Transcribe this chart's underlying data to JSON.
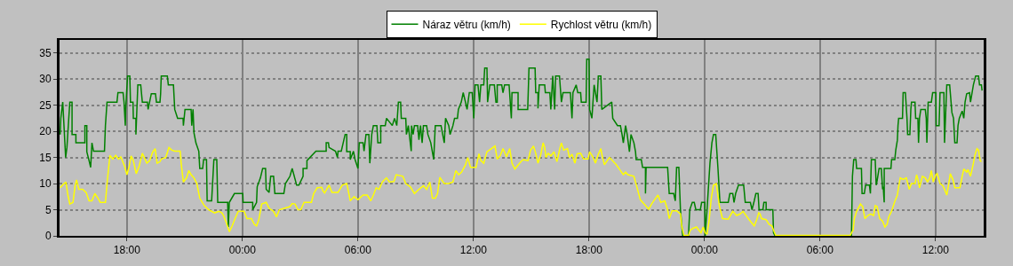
{
  "chart_data": {
    "type": "line",
    "xlim": [
      "--01-01T14:30",
      "--01-03T14:30"
    ],
    "xticks": [
      {
        "value": "--01-01T18:00",
        "label": "18:00"
      },
      {
        "value": "--01-02T00:00",
        "label": "00:00"
      },
      {
        "value": "--01-02T06:00",
        "label": "06:00"
      },
      {
        "value": "--01-02T12:00",
        "label": "12:00"
      },
      {
        "value": "--01-02T18:00",
        "label": "18:00"
      },
      {
        "value": "--01-03T00:00",
        "label": "00:00"
      },
      {
        "value": "--01-03T06:00",
        "label": "06:00"
      },
      {
        "value": "--01-03T12:00",
        "label": "12:00"
      }
    ],
    "ylim": [
      0,
      37.5
    ],
    "yticks": [
      0,
      5,
      10,
      15,
      20,
      25,
      30,
      35
    ],
    "grid": true,
    "legend": "top",
    "line_style": "solid",
    "marker": "none",
    "series": [
      {
        "name": "Náraz větru (km/h)",
        "color": "#008000",
        "x": [
          "--01-01T14:32",
          "--01-01T14:34",
          "--01-01T14:40",
          "--01-01T14:49",
          "--01-01T14:53",
          "--01-01T15:02",
          "--01-01T15:09",
          "--01-01T15:09",
          "--01-01T15:21",
          "--01-01T15:21",
          "--01-01T15:49",
          "--01-01T15:49",
          "--01-01T15:55",
          "--01-01T15:55",
          "--01-01T16:02",
          "--01-01T16:07",
          "--01-01T16:11",
          "--01-01T16:16",
          "--01-01T16:50",
          "--01-01T16:53",
          "--01-01T16:58",
          "--01-01T17:29",
          "--01-01T17:32",
          "--01-01T17:48",
          "--01-01T17:51",
          "--01-01T17:55",
          "--01-01T17:56",
          "--01-01T18:02",
          "--01-01T18:09",
          "--01-01T18:11",
          "--01-01T18:19",
          "--01-01T18:20",
          "--01-01T18:28",
          "--01-01T18:28",
          "--01-01T18:34",
          "--01-01T18:43",
          "--01-01T18:48",
          "--01-01T19:04",
          "--01-01T19:06",
          "--01-01T19:16",
          "--01-01T19:29",
          "--01-01T19:32",
          "--01-01T19:43",
          "--01-01T19:45",
          "--01-01T19:47",
          "--01-01T20:06",
          "--01-01T20:09",
          "--01-01T20:25",
          "--01-01T20:29",
          "--01-01T20:38",
          "--01-01T20:55",
          "--01-01T20:56",
          "--01-01T21:01",
          "--01-01T21:20",
          "--01-01T21:22",
          "--01-01T21:26",
          "--01-01T21:29",
          "--01-01T21:35",
          "--01-01T21:44",
          "--01-01T21:47",
          "--01-01T21:56",
          "--01-01T21:59",
          "--01-01T22:08",
          "--01-01T22:10",
          "--01-01T22:24",
          "--01-01T22:31",
          "--01-01T22:40",
          "--01-01T22:43",
          "--01-01T23:14",
          "--01-01T23:16",
          "--01-01T23:19",
          "--01-01T23:35",
          "--01-02T00:01",
          "--01-02T00:02",
          "--01-02T00:32",
          "--01-02T00:32",
          "--01-02T00:44",
          "--01-02T00:46",
          "--01-02T00:56",
          "--01-02T01:03",
          "--01-02T01:12",
          "--01-02T01:14",
          "--01-02T01:23",
          "--01-02T01:28",
          "--01-02T01:37",
          "--01-02T01:41",
          "--01-02T02:09",
          "--01-02T02:14",
          "--01-02T02:28",
          "--01-02T02:35",
          "--01-02T02:49",
          "--01-02T02:56",
          "--01-02T03:09",
          "--01-02T03:09",
          "--01-02T03:21",
          "--01-02T03:21",
          "--01-02T03:49",
          "--01-02T04:21",
          "--01-02T04:21",
          "--01-02T04:28",
          "--01-02T04:30",
          "--01-02T04:50",
          "--01-02T04:56",
          "--01-02T04:58",
          "--01-02T05:08",
          "--01-02T05:14",
          "--01-02T05:20",
          "--01-02T05:25",
          "--01-02T05:25",
          "--01-02T05:36",
          "--01-02T05:36",
          "--01-02T05:46",
          "--01-02T05:51",
          "--01-02T06:00",
          "--01-02T06:04",
          "--01-02T06:16",
          "--01-02T06:19",
          "--01-02T06:25",
          "--01-02T06:34",
          "--01-02T06:37",
          "--01-02T06:43",
          "--01-02T06:48",
          "--01-02T06:59",
          "--01-02T07:02",
          "--01-02T07:11",
          "--01-02T07:11",
          "--01-02T07:25",
          "--01-02T07:29",
          "--01-02T07:47",
          "--01-02T07:54",
          "--01-02T08:01",
          "--01-02T08:06",
          "--01-02T08:13",
          "--01-02T08:15",
          "--01-02T08:29",
          "--01-02T08:31",
          "--01-02T08:37",
          "--01-02T08:46",
          "--01-02T08:47",
          "--01-02T08:52",
          "--01-02T08:56",
          "--01-02T09:06",
          "--01-02T09:10",
          "--01-02T09:15",
          "--01-02T09:20",
          "--01-02T09:24",
          "--01-02T09:34",
          "--01-02T09:38",
          "--01-02T09:47",
          "--01-02T09:56",
          "--01-02T10:01",
          "--01-02T10:19",
          "--01-02T10:24",
          "--01-02T10:29",
          "--01-02T10:33",
          "--01-02T10:43",
          "--01-02T10:47",
          "--01-02T10:56",
          "--01-02T11:01",
          "--01-02T11:10",
          "--01-02T11:13",
          "--01-02T11:22",
          "--01-02T11:28",
          "--01-02T11:35",
          "--01-02T11:40",
          "--01-02T11:47",
          "--01-02T11:56",
          "--01-02T12:01",
          "--01-02T12:05",
          "--01-02T12:14",
          "--01-02T12:19",
          "--01-02T12:23",
          "--01-02T12:32",
          "--01-02T12:35",
          "--01-02T12:42",
          "--01-02T12:44",
          "--01-02T12:51",
          "--01-02T13:05",
          "--01-02T13:10",
          "--01-02T13:14",
          "--01-02T13:14",
          "--01-02T13:28",
          "--01-02T13:32",
          "--01-02T13:37",
          "--01-02T13:51",
          "--01-02T13:58",
          "--01-02T14:00",
          "--01-02T14:19",
          "--01-02T14:19",
          "--01-02T14:35",
          "--01-02T14:49",
          "--01-02T14:53",
          "--01-02T15:12",
          "--01-02T15:14",
          "--01-02T15:21",
          "--01-02T15:21",
          "--01-02T15:25",
          "--01-02T15:42",
          "--01-02T15:44",
          "--01-02T15:58",
          "--01-02T16:01",
          "--01-02T16:07",
          "--01-02T16:13",
          "--01-02T16:16",
          "--01-02T16:28",
          "--01-02T16:34",
          "--01-02T16:39",
          "--01-02T17:02",
          "--01-02T17:07",
          "--01-02T17:10",
          "--01-02T17:20",
          "--01-02T17:25",
          "--01-02T17:34",
          "--01-02T17:36",
          "--01-02T17:51",
          "--01-02T17:53",
          "--01-02T18:00",
          "--01-02T18:02",
          "--01-02T18:09",
          "--01-02T18:16",
          "--01-02T18:25",
          "--01-02T18:29",
          "--01-02T18:37",
          "--01-02T18:40",
          "--01-02T19:11",
          "--01-02T19:14",
          "--01-02T19:29",
          "--01-02T19:38",
          "--01-02T19:43",
          "--01-02T19:47",
          "--01-02T19:54",
          "--01-02T19:59",
          "--01-02T20:06",
          "--01-02T20:11",
          "--01-02T20:20",
          "--01-02T20:25",
          "--01-02T20:27",
          "--01-02T20:43",
          "--01-02T20:47",
          "--01-02T20:56",
          "--01-02T20:56",
          "--01-02T20:58",
          "--01-02T22:05",
          "--01-02T22:10",
          "--01-02T22:24",
          "--01-02T22:29",
          "--01-02T22:33",
          "--01-02T22:40",
          "--01-02T22:45",
          "--01-02T22:52",
          "--01-02T23:10",
          "--01-02T23:14",
          "--01-02T23:22",
          "--01-02T23:28",
          "--01-02T23:33",
          "--01-02T23:47",
          "--01-02T23:51",
          "--01-03T00:01",
          "--01-03T00:02",
          "--01-03T00:08",
          "--01-03T00:11",
          "--01-03T00:17",
          "--01-03T00:23",
          "--01-03T00:28",
          "--01-03T00:35",
          "--01-03T00:42",
          "--01-03T00:48",
          "--01-03T01:14",
          "--01-03T01:19",
          "--01-03T01:28",
          "--01-03T01:32",
          "--01-03T01:37",
          "--01-03T01:46",
          "--01-03T02:02",
          "--01-03T02:07",
          "--01-03T02:23",
          "--01-03T02:28",
          "--01-03T02:35",
          "--01-03T02:40",
          "--01-03T02:47",
          "--01-03T02:50",
          "--01-03T03:02",
          "--01-03T03:05",
          "--01-03T03:12",
          "--01-03T03:12",
          "--01-03T03:33",
          "--01-03T03:35",
          "--01-03T03:40",
          "--01-03T07:38",
          "--01-03T07:41",
          "--01-03T07:45",
          "--01-03T07:52",
          "--01-03T07:54",
          "--01-03T08:09",
          "--01-03T08:11",
          "--01-03T08:18",
          "--01-03T08:22",
          "--01-03T08:34",
          "--01-03T08:37",
          "--01-03T08:40",
          "--01-03T08:52",
          "--01-03T08:55",
          "--01-03T08:58",
          "--01-03T09:04",
          "--01-03T09:11",
          "--01-03T09:15",
          "--01-03T09:17",
          "--01-03T09:20",
          "--01-03T09:20",
          "--01-03T09:41",
          "--01-03T09:43",
          "--01-03T09:53",
          "--01-03T09:56",
          "--01-03T10:01",
          "--01-03T10:03",
          "--01-03T10:05",
          "--01-03T10:17",
          "--01-03T10:19",
          "--01-03T10:26",
          "--01-03T10:31",
          "--01-03T10:33",
          "--01-03T10:40",
          "--01-03T10:43",
          "--01-03T10:45",
          "--01-03T10:56",
          "--01-03T10:58",
          "--01-03T11:05",
          "--01-03T11:07",
          "--01-03T11:10",
          "--01-03T11:14",
          "--01-03T11:28",
          "--01-03T11:31",
          "--01-03T11:33",
          "--01-03T11:37",
          "--01-03T11:47",
          "--01-03T11:51",
          "--01-03T12:01",
          "--01-03T12:02",
          "--01-03T12:11",
          "--01-03T12:14",
          "--01-03T12:26",
          "--01-03T12:28",
          "--01-03T12:35",
          "--01-03T12:44",
          "--01-03T12:51",
          "--01-03T12:56",
          "--01-03T13:00",
          "--01-03T13:07",
          "--01-03T13:10",
          "--01-03T13:14",
          "--01-03T13:23",
          "--01-03T13:28",
          "--01-03T13:32",
          "--01-03T13:37",
          "--01-03T13:46",
          "--01-03T13:49",
          "--01-03T13:58",
          "--01-03T14:05",
          "--01-03T14:14",
          "--01-03T14:17",
          "--01-03T14:23",
          "--01-03T14:25"
        ],
        "values": [
          19.4,
          22.5,
          25.6,
          15.0,
          16.9,
          25.6,
          25.6,
          19.4,
          19.4,
          17.8,
          17.8,
          21.1,
          21.1,
          16.1,
          14.4,
          13.1,
          17.8,
          16.2,
          16.2,
          21.1,
          25.6,
          25.6,
          27.4,
          27.4,
          25.6,
          21.1,
          24.2,
          30.6,
          30.6,
          25.6,
          25.6,
          22.5,
          22.5,
          19.4,
          28.9,
          28.9,
          25.6,
          25.6,
          24.2,
          27.2,
          27.2,
          25.6,
          25.6,
          27.2,
          30.6,
          30.6,
          28.9,
          28.9,
          24.2,
          22.5,
          22.5,
          21.1,
          24.2,
          24.2,
          21.1,
          24.2,
          19.7,
          17.8,
          16.2,
          12.9,
          12.9,
          14.6,
          14.6,
          6.7,
          6.7,
          14.6,
          14.6,
          6.4,
          6.4,
          1.7,
          6.4,
          8.1,
          8.1,
          6.4,
          6.4,
          5.0,
          6.4,
          9.4,
          11.1,
          12.9,
          12.9,
          8.9,
          8.3,
          11.4,
          11.4,
          8.1,
          8.1,
          10.0,
          11.4,
          12.9,
          9.7,
          9.7,
          11.4,
          12.9,
          12.9,
          14.4,
          16.2,
          16.2,
          17.8,
          17.8,
          16.9,
          16.2,
          15.0,
          16.2,
          16.2,
          17.8,
          19.4,
          19.4,
          16.1,
          16.1,
          14.6,
          16.2,
          14.6,
          12.9,
          17.8,
          17.8,
          16.2,
          19.4,
          19.4,
          13.9,
          19.4,
          21.1,
          21.1,
          17.8,
          17.8,
          21.1,
          21.1,
          22.5,
          21.1,
          22.5,
          21.1,
          25.6,
          25.6,
          22.5,
          22.5,
          19.4,
          21.1,
          16.2,
          21.1,
          19.4,
          21.1,
          21.1,
          18.4,
          21.1,
          17.8,
          21.1,
          21.1,
          19.4,
          17.8,
          14.6,
          21.1,
          21.1,
          19.4,
          17.8,
          22.5,
          21.1,
          19.4,
          21.1,
          22.5,
          22.5,
          24.2,
          25.6,
          27.4,
          25.6,
          24.2,
          27.4,
          27.4,
          22.5,
          28.9,
          28.9,
          25.6,
          28.9,
          28.9,
          32.1,
          32.1,
          25.6,
          28.9,
          28.9,
          25.6,
          25.6,
          28.9,
          28.9,
          27.4,
          28.9,
          28.9,
          22.5,
          27.4,
          27.4,
          24.2,
          24.2,
          24.2,
          32.1,
          32.1,
          27.4,
          27.4,
          24.4,
          28.9,
          28.9,
          27.4,
          27.4,
          24.2,
          30.6,
          24.2,
          30.6,
          30.6,
          25.6,
          27.4,
          27.4,
          22.5,
          27.4,
          28.9,
          27.4,
          27.4,
          25.6,
          25.6,
          33.8,
          33.8,
          24.2,
          22.5,
          28.9,
          25.6,
          30.6,
          30.6,
          24.2,
          25.6,
          22.5,
          21.1,
          21.1,
          19.4,
          17.8,
          21.1,
          19.4,
          16.1,
          19.4,
          17.8,
          16.1,
          14.6,
          14.6,
          13.1,
          13.1,
          8.1,
          13.1,
          13.1,
          8.1,
          8.1,
          6.7,
          13.1,
          13.1,
          5.0,
          0,
          0,
          5.0,
          6.4,
          6.4,
          5.0,
          5.0,
          6.4,
          6.4,
          0,
          5.0,
          8.1,
          13.9,
          17.8,
          19.4,
          19.4,
          12.8,
          6.4,
          6.4,
          8.1,
          8.1,
          6.4,
          8.1,
          9.7,
          9.7,
          6.4,
          6.4,
          5.0,
          6.7,
          8.1,
          8.1,
          5.0,
          5.0,
          6.4,
          6.4,
          5.0,
          5.0,
          0.6,
          0,
          0,
          11.4,
          14.6,
          14.6,
          12.9,
          12.9,
          8.1,
          8.1,
          9.7,
          9.7,
          8.1,
          14.6,
          14.6,
          9.7,
          10.6,
          12.9,
          12.9,
          8.9,
          9.4,
          6.4,
          12.9,
          12.9,
          14.6,
          14.6,
          16.4,
          18.3,
          21.1,
          22.5,
          22.5,
          27.4,
          27.4,
          22.5,
          19.4,
          19.4,
          24.2,
          25.6,
          25.6,
          22.5,
          22.5,
          17.8,
          22.5,
          24.2,
          24.2,
          22.5,
          17.8,
          25.6,
          25.6,
          27.4,
          27.4,
          21.1,
          21.1,
          27.4,
          27.4,
          17.8,
          28.9,
          28.9,
          23.6,
          22.5,
          17.8,
          17.8,
          21.1,
          22.5,
          23.9,
          22.5,
          25.6,
          27.2,
          27.4,
          25.6,
          28.9,
          30.6,
          30.6,
          28.9,
          28.9,
          27.8
        ]
      },
      {
        "name": "Rychlost větru (km/h)",
        "color": "#ffff00",
        "x": [
          "--01-01T14:32",
          "--01-01T14:44",
          "--01-01T14:50",
          "--01-01T14:56",
          "--01-01T15:02",
          "--01-01T15:12",
          "--01-01T15:18",
          "--01-01T15:23",
          "--01-01T15:30",
          "--01-01T15:42",
          "--01-01T15:53",
          "--01-01T16:02",
          "--01-01T16:11",
          "--01-01T16:20",
          "--01-01T16:30",
          "--01-01T16:37",
          "--01-01T16:53",
          "--01-01T16:59",
          "--01-01T17:07",
          "--01-01T17:16",
          "--01-01T17:25",
          "--01-01T17:34",
          "--01-01T17:41",
          "--01-01T17:53",
          "--01-01T18:00",
          "--01-01T18:07",
          "--01-01T18:13",
          "--01-01T18:20",
          "--01-01T18:29",
          "--01-01T18:38",
          "--01-01T18:48",
          "--01-01T19:02",
          "--01-01T19:11",
          "--01-01T19:20",
          "--01-01T19:28",
          "--01-01T19:34",
          "--01-01T19:43",
          "--01-01T19:47",
          "--01-01T20:01",
          "--01-01T20:11",
          "--01-01T20:20",
          "--01-01T20:29",
          "--01-01T20:46",
          "--01-01T20:49",
          "--01-01T20:56",
          "--01-01T21:06",
          "--01-01T21:13",
          "--01-01T21:20",
          "--01-01T21:29",
          "--01-01T21:38",
          "--01-01T21:47",
          "--01-01T22:01",
          "--01-01T22:15",
          "--01-01T22:33",
          "--01-01T22:47",
          "--01-01T22:56",
          "--01-01T23:01",
          "--01-01T23:10",
          "--01-01T23:19",
          "--01-01T23:28",
          "--01-01T23:37",
          "--01-01T23:47",
          "--01-02T00:05",
          "--01-02T00:14",
          "--01-02T00:28",
          "--01-02T00:37",
          "--01-02T00:44",
          "--01-02T00:51",
          "--01-02T01:00",
          "--01-02T01:14",
          "--01-02T01:23",
          "--01-02T01:37",
          "--01-02T01:46",
          "--01-02T01:55",
          "--01-02T02:28",
          "--01-02T02:35",
          "--01-02T02:44",
          "--01-02T02:53",
          "--01-02T03:02",
          "--01-02T03:12",
          "--01-02T03:35",
          "--01-02T03:42",
          "--01-02T03:53",
          "--01-02T04:07",
          "--01-02T04:11",
          "--01-02T04:16",
          "--01-02T04:30",
          "--01-02T04:39",
          "--01-02T04:58",
          "--01-02T05:11",
          "--01-02T05:25",
          "--01-02T05:29",
          "--01-02T05:36",
          "--01-02T05:48",
          "--01-02T06:00",
          "--01-02T06:16",
          "--01-02T06:29",
          "--01-02T06:40",
          "--01-02T06:48",
          "--01-02T06:57",
          "--01-02T07:06",
          "--01-02T07:16",
          "--01-02T07:29",
          "--01-02T07:38",
          "--01-02T07:52",
          "--01-02T07:59",
          "--01-02T08:20",
          "--01-02T08:29",
          "--01-02T08:43",
          "--01-02T08:56",
          "--01-02T09:10",
          "--01-02T09:24",
          "--01-02T09:34",
          "--01-02T09:44",
          "--01-02T09:52",
          "--01-02T10:01",
          "--01-02T10:08",
          "--01-02T10:15",
          "--01-02T10:29",
          "--01-02T10:43",
          "--01-02T10:56",
          "--01-02T11:05",
          "--01-02T11:14",
          "--01-02T11:23",
          "--01-02T11:35",
          "--01-02T11:42",
          "--01-02T11:51",
          "--01-02T12:08",
          "--01-02T12:17",
          "--01-02T12:23",
          "--01-02T12:32",
          "--01-02T12:42",
          "--01-02T12:56",
          "--01-02T13:07",
          "--01-02T13:14",
          "--01-02T13:23",
          "--01-02T13:32",
          "--01-02T13:43",
          "--01-02T13:53",
          "--01-02T14:00",
          "--01-02T14:09",
          "--01-02T14:28",
          "--01-02T14:35",
          "--01-02T14:50",
          "--01-02T14:58",
          "--01-02T15:07",
          "--01-02T15:14",
          "--01-02T15:21",
          "--01-02T15:30",
          "--01-02T15:37",
          "--01-02T15:42",
          "--01-02T15:46",
          "--01-02T15:53",
          "--01-02T16:01",
          "--01-02T16:11",
          "--01-02T16:20",
          "--01-02T16:30",
          "--01-02T16:34",
          "--01-02T16:41",
          "--01-02T16:53",
          "--01-02T16:59",
          "--01-02T17:07",
          "--01-02T17:16",
          "--01-02T17:23",
          "--01-02T17:34",
          "--01-02T17:43",
          "--01-02T17:57",
          "--01-02T18:02",
          "--01-02T18:13",
          "--01-02T18:20",
          "--01-02T18:29",
          "--01-02T18:37",
          "--01-02T18:40",
          "--01-02T18:48",
          "--01-02T18:57",
          "--01-02T19:04",
          "--01-02T19:16",
          "--01-02T19:25",
          "--01-02T19:38",
          "--01-02T19:47",
          "--01-02T19:54",
          "--01-02T20:01",
          "--01-02T20:20",
          "--01-02T20:29",
          "--01-02T20:40",
          "--01-02T20:56",
          "--01-02T21:06",
          "--01-02T21:15",
          "--01-02T21:24",
          "--01-02T21:35",
          "--01-02T21:44",
          "--01-02T21:56",
          "--01-02T22:05",
          "--01-02T22:10",
          "--01-02T22:19",
          "--01-02T22:33",
          "--01-02T22:45",
          "--01-02T22:49",
          "--01-02T22:56",
          "--01-02T23:10",
          "--01-02T23:16",
          "--01-02T23:23",
          "--01-02T23:35",
          "--01-02T23:42",
          "--01-02T23:49",
          "--01-02T23:56",
          "--01-03T00:02",
          "--01-03T00:08",
          "--01-03T00:14",
          "--01-03T00:21",
          "--01-03T00:28",
          "--01-03T00:37",
          "--01-03T00:46",
          "--01-03T00:56",
          "--01-03T01:14",
          "--01-03T01:28",
          "--01-03T01:40",
          "--01-03T01:51",
          "--01-03T02:00",
          "--01-03T02:19",
          "--01-03T02:35",
          "--01-03T02:44",
          "--01-03T02:49",
          "--01-03T02:53",
          "--01-03T02:58",
          "--01-03T03:12",
          "--01-03T03:21",
          "--01-03T03:30",
          "--01-03T03:37",
          "--01-03T03:42",
          "--01-03T07:34",
          "--01-03T07:43",
          "--01-03T07:47",
          "--01-03T07:54",
          "--01-03T08:06",
          "--01-03T08:13",
          "--01-03T08:20",
          "--01-03T08:29",
          "--01-03T08:38",
          "--01-03T08:47",
          "--01-03T08:52",
          "--01-03T08:58",
          "--01-03T09:06",
          "--01-03T09:15",
          "--01-03T09:22",
          "--01-03T09:29",
          "--01-03T09:34",
          "--01-03T09:43",
          "--01-03T09:52",
          "--01-03T10:01",
          "--01-03T10:05",
          "--01-03T10:10",
          "--01-03T10:19",
          "--01-03T10:29",
          "--01-03T10:38",
          "--01-03T10:45",
          "--01-03T10:56",
          "--01-03T11:01",
          "--01-03T11:05",
          "--01-03T11:10",
          "--01-03T11:19",
          "--01-03T11:28",
          "--01-03T11:35",
          "--01-03T11:42",
          "--01-03T11:47",
          "--01-03T11:53",
          "--01-03T12:01",
          "--01-03T12:05",
          "--01-03T12:14",
          "--01-03T12:23",
          "--01-03T12:28",
          "--01-03T12:35",
          "--01-03T12:42",
          "--01-03T12:46",
          "--01-03T12:54",
          "--01-03T13:00",
          "--01-03T13:16",
          "--01-03T13:23",
          "--01-03T13:28",
          "--01-03T13:37",
          "--01-03T13:41",
          "--01-03T13:49",
          "--01-03T13:58",
          "--01-03T14:02",
          "--01-03T14:09",
          "--01-03T14:14",
          "--01-03T14:19",
          "--01-03T14:23"
        ],
        "values": [
          9.2,
          10.0,
          10.3,
          7.8,
          6.1,
          6.4,
          9.4,
          10.7,
          8.9,
          8.9,
          8.3,
          6.7,
          6.7,
          8.1,
          7.2,
          6.4,
          6.4,
          10.6,
          15.4,
          14.7,
          15.4,
          14.7,
          15.1,
          13.3,
          11.7,
          13.3,
          15.3,
          14.4,
          11.9,
          13.3,
          15.8,
          13.9,
          14.4,
          16.0,
          16.7,
          13.9,
          14.2,
          14.7,
          15.0,
          16.9,
          16.4,
          16.2,
          16.2,
          13.9,
          10.3,
          11.1,
          12.5,
          11.7,
          11.1,
          10.0,
          7.2,
          5.8,
          5.0,
          4.4,
          4.7,
          4.4,
          3.9,
          2.5,
          0.8,
          1.9,
          3.3,
          4.7,
          4.7,
          3.3,
          3.3,
          2.2,
          1.9,
          3.1,
          6.1,
          6.4,
          5.3,
          4.7,
          3.6,
          5.0,
          5.6,
          6.2,
          6.1,
          5.0,
          5.0,
          6.4,
          6.4,
          8.1,
          9.2,
          9.3,
          8.6,
          8.2,
          9.7,
          8.3,
          8.3,
          9.7,
          10.0,
          8.9,
          6.7,
          7.5,
          6.9,
          7.8,
          7.8,
          6.7,
          7.8,
          9.2,
          8.9,
          10.3,
          11.1,
          10.3,
          10.4,
          11.7,
          11.4,
          10.0,
          9.4,
          8.1,
          8.9,
          9.6,
          8.9,
          10.3,
          7.2,
          7.2,
          8.1,
          11.2,
          10.0,
          10.0,
          10.3,
          12.5,
          11.7,
          12.2,
          13.6,
          15.0,
          13.1,
          13.1,
          15.7,
          14.4,
          13.9,
          16.1,
          16.7,
          17.2,
          14.7,
          15.3,
          16.7,
          15.1,
          16.7,
          13.9,
          12.8,
          14.2,
          14.6,
          14.4,
          16.4,
          17.2,
          15.8,
          13.9,
          15.6,
          17.8,
          16.9,
          15.0,
          15.8,
          15.3,
          16.1,
          14.2,
          16.9,
          17.8,
          16.4,
          16.7,
          15.0,
          15.6,
          13.9,
          15.7,
          15.8,
          14.7,
          14.7,
          16.1,
          15.0,
          13.9,
          15.6,
          16.7,
          15.6,
          13.6,
          14.4,
          15.0,
          14.2,
          13.6,
          12.5,
          11.7,
          12.2,
          11.7,
          11.4,
          9.4,
          6.9,
          5.8,
          5.1,
          6.1,
          6.9,
          7.8,
          6.4,
          6.7,
          5.0,
          3.3,
          4.8,
          4.8,
          4.2,
          1.9,
          0.1,
          0.1,
          1.1,
          1.4,
          1.7,
          1.1,
          0.6,
          1.7,
          0.6,
          0.3,
          2.8,
          7.2,
          9.7,
          10.0,
          5.8,
          3.3,
          3.2,
          4.7,
          3.9,
          4.2,
          4.7,
          3.1,
          1.9,
          3.3,
          4.4,
          4.2,
          3.3,
          3.1,
          2.2,
          1.9,
          0.8,
          0.1,
          0.1,
          1.1,
          3.3,
          4.7,
          6.1,
          5.6,
          3.3,
          3.9,
          4.2,
          3.9,
          5.8,
          5.6,
          3.3,
          2.8,
          1.7,
          2.2,
          3.6,
          4.7,
          6.4,
          7.8,
          9.4,
          11.1,
          10.8,
          11.1,
          8.9,
          10.0,
          10.0,
          11.7,
          10.8,
          9.2,
          11.4,
          11.1,
          10.3,
          11.1,
          12.5,
          10.3,
          11.7,
          11.9,
          10.0,
          9.6,
          8.9,
          7.8,
          10.3,
          11.9,
          10.8,
          9.2,
          9.2,
          11.4,
          12.8,
          12.2,
          12.7,
          11.4,
          13.9,
          15.3,
          16.7,
          16.4,
          14.4,
          14.2
        ]
      }
    ]
  }
}
